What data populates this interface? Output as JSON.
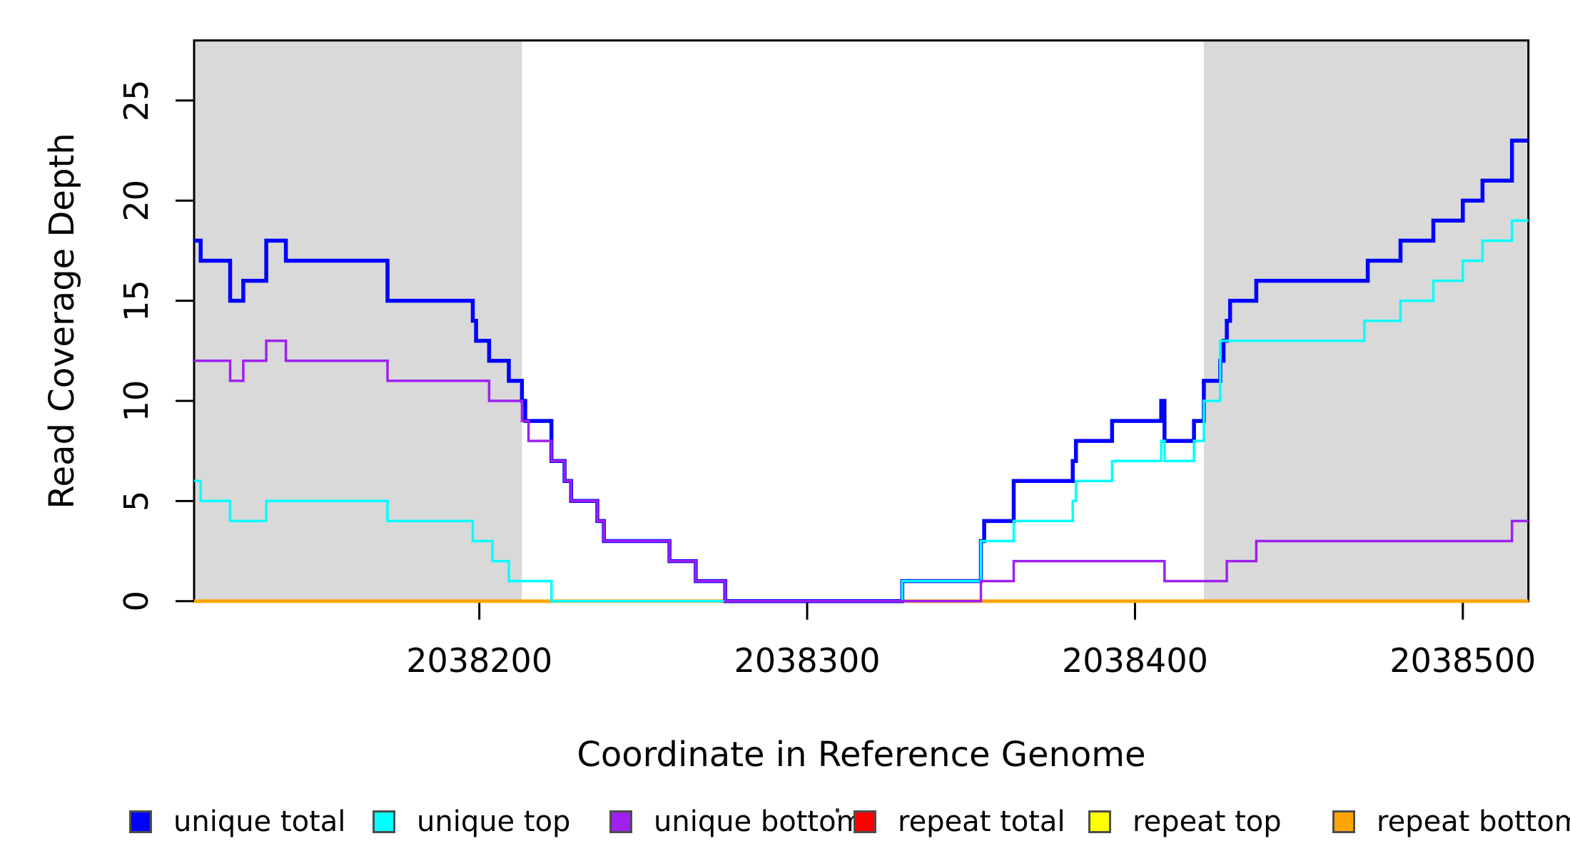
{
  "chart_data": {
    "type": "line",
    "subtype": "step-post",
    "title": "",
    "xlabel": "Coordinate in Reference Genome",
    "ylabel": "Read Coverage Depth",
    "xlim": [
      2038113,
      2038520
    ],
    "ylim": [
      0,
      28
    ],
    "x_ticks": [
      2038200,
      2038300,
      2038400,
      2038500
    ],
    "x_tick_labels": [
      "2038200",
      "2038300",
      "2038400",
      "2038500"
    ],
    "y_ticks": [
      0,
      5,
      10,
      15,
      20,
      25
    ],
    "y_tick_labels": [
      "0",
      "5",
      "10",
      "15",
      "20",
      "25"
    ],
    "grid": false,
    "legend_position": "bottom",
    "shaded_regions": [
      {
        "name": "left-gray-flank",
        "x0": 2038113,
        "x1": 2038213,
        "color": "#d9d9d9"
      },
      {
        "name": "right-gray-flank",
        "x0": 2038421,
        "x1": 2038520,
        "color": "#d9d9d9"
      }
    ],
    "series": [
      {
        "name": "unique total",
        "color": "#0000ff",
        "line_width": 5.5,
        "points": [
          [
            2038113,
            18
          ],
          [
            2038115,
            17
          ],
          [
            2038124,
            15
          ],
          [
            2038128,
            16
          ],
          [
            2038135,
            18
          ],
          [
            2038141,
            17
          ],
          [
            2038172,
            15
          ],
          [
            2038198,
            14
          ],
          [
            2038199,
            13
          ],
          [
            2038203,
            12
          ],
          [
            2038209,
            11
          ],
          [
            2038213,
            10
          ],
          [
            2038214,
            9
          ],
          [
            2038222,
            7
          ],
          [
            2038226,
            6
          ],
          [
            2038228,
            5
          ],
          [
            2038236,
            4
          ],
          [
            2038238,
            3
          ],
          [
            2038258,
            2
          ],
          [
            2038266,
            1
          ],
          [
            2038275,
            0
          ],
          [
            2038329,
            1
          ],
          [
            2038353,
            3
          ],
          [
            2038354,
            4
          ],
          [
            2038363,
            6
          ],
          [
            2038381,
            7
          ],
          [
            2038382,
            8
          ],
          [
            2038393,
            9
          ],
          [
            2038408,
            10
          ],
          [
            2038409,
            8
          ],
          [
            2038418,
            9
          ],
          [
            2038421,
            11
          ],
          [
            2038426,
            12
          ],
          [
            2038427,
            13
          ],
          [
            2038428,
            14
          ],
          [
            2038429,
            15
          ],
          [
            2038437,
            16
          ],
          [
            2038471,
            17
          ],
          [
            2038481,
            18
          ],
          [
            2038491,
            19
          ],
          [
            2038500,
            20
          ],
          [
            2038506,
            21
          ],
          [
            2038515,
            23
          ]
        ]
      },
      {
        "name": "unique top",
        "color": "#00ffff",
        "line_width": 3.5,
        "points": [
          [
            2038113,
            6
          ],
          [
            2038115,
            5
          ],
          [
            2038124,
            4
          ],
          [
            2038135,
            5
          ],
          [
            2038172,
            4
          ],
          [
            2038198,
            3
          ],
          [
            2038204,
            2
          ],
          [
            2038209,
            1
          ],
          [
            2038222,
            0
          ],
          [
            2038329,
            1
          ],
          [
            2038353,
            3
          ],
          [
            2038363,
            4
          ],
          [
            2038381,
            5
          ],
          [
            2038382,
            6
          ],
          [
            2038393,
            7
          ],
          [
            2038408,
            8
          ],
          [
            2038409,
            7
          ],
          [
            2038418,
            8
          ],
          [
            2038421,
            10
          ],
          [
            2038426,
            13
          ],
          [
            2038470,
            14
          ],
          [
            2038481,
            15
          ],
          [
            2038491,
            16
          ],
          [
            2038500,
            17
          ],
          [
            2038506,
            18
          ],
          [
            2038515,
            19
          ]
        ]
      },
      {
        "name": "unique bottom",
        "color": "#a020f0",
        "line_width": 3.5,
        "points": [
          [
            2038113,
            12
          ],
          [
            2038124,
            11
          ],
          [
            2038128,
            12
          ],
          [
            2038135,
            13
          ],
          [
            2038141,
            12
          ],
          [
            2038172,
            11
          ],
          [
            2038203,
            10
          ],
          [
            2038213,
            9
          ],
          [
            2038215,
            8
          ],
          [
            2038222,
            7
          ],
          [
            2038226,
            6
          ],
          [
            2038228,
            5
          ],
          [
            2038236,
            4
          ],
          [
            2038238,
            3
          ],
          [
            2038258,
            2
          ],
          [
            2038266,
            1
          ],
          [
            2038275,
            0
          ],
          [
            2038353,
            1
          ],
          [
            2038363,
            2
          ],
          [
            2038409,
            1
          ],
          [
            2038428,
            2
          ],
          [
            2038437,
            3
          ],
          [
            2038515,
            4
          ]
        ]
      },
      {
        "name": "repeat total",
        "color": "#ff0000",
        "line_width": 3.5,
        "points": [
          [
            2038113,
            0
          ]
        ]
      },
      {
        "name": "repeat top",
        "color": "#ffff00",
        "line_width": 3.5,
        "points": [
          [
            2038113,
            0
          ]
        ]
      },
      {
        "name": "repeat bottom",
        "color": "#ffa500",
        "line_width": 5,
        "points": [
          [
            2038113,
            0
          ]
        ]
      }
    ],
    "draw_order": [
      "repeat total",
      "repeat top",
      "repeat bottom",
      "unique total",
      "unique top",
      "unique bottom"
    ]
  }
}
